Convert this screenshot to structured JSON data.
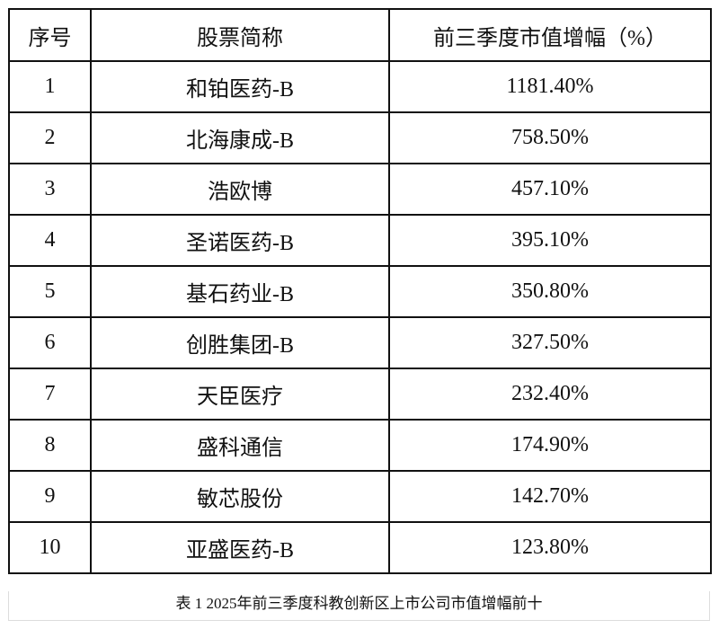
{
  "table": {
    "headers": [
      "序号",
      "股票简称",
      "前三季度市值增幅（%）"
    ],
    "rows": [
      [
        "1",
        "和铂医药-B",
        "1181.40%"
      ],
      [
        "2",
        "北海康成-B",
        "758.50%"
      ],
      [
        "3",
        "浩欧博",
        "457.10%"
      ],
      [
        "4",
        "圣诺医药-B",
        "395.10%"
      ],
      [
        "5",
        "基石药业-B",
        "350.80%"
      ],
      [
        "6",
        "创胜集团-B",
        "327.50%"
      ],
      [
        "7",
        "天臣医疗",
        "232.40%"
      ],
      [
        "8",
        "盛科通信",
        "174.90%"
      ],
      [
        "9",
        "敏芯股份",
        "142.70%"
      ],
      [
        "10",
        "亚盛医药-B",
        "123.80%"
      ]
    ]
  },
  "caption": "表 1 2025年前三季度科教创新区上市公司市值增幅前十"
}
